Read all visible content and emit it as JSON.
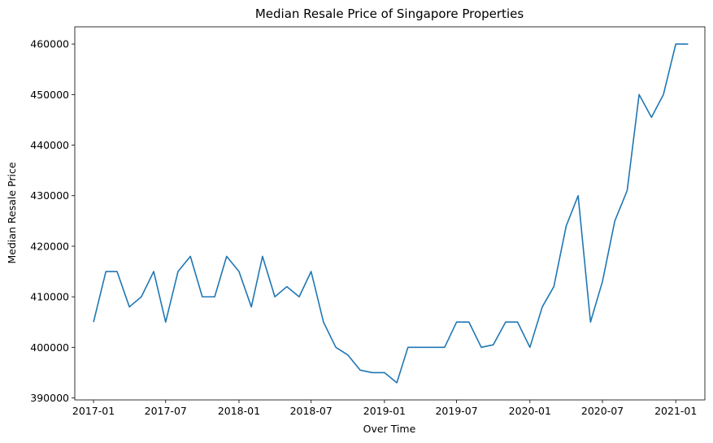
{
  "chart_data": {
    "type": "line",
    "title": "Median Resale Price of Singapore Properties",
    "xlabel": "Over Time",
    "ylabel": "Median Resale Price",
    "x_tick_labels": [
      "2017-01",
      "2017-07",
      "2018-01",
      "2018-07",
      "2019-01",
      "2019-07",
      "2020-01",
      "2020-07",
      "2021-01"
    ],
    "y_tick_labels": [
      "390000",
      "400000",
      "410000",
      "420000",
      "430000",
      "440000",
      "450000",
      "460000"
    ],
    "y_ticks": [
      390000,
      400000,
      410000,
      420000,
      430000,
      440000,
      450000,
      460000
    ],
    "xlim": [
      "2016-11-15",
      "2021-03-15"
    ],
    "ylim": [
      389600,
      463400
    ],
    "grid": false,
    "line_color": "#1f77b4",
    "series": [
      {
        "x": [
          "2017-01",
          "2017-02",
          "2017-03",
          "2017-04",
          "2017-05",
          "2017-06",
          "2017-07",
          "2017-08",
          "2017-09",
          "2017-10",
          "2017-11",
          "2017-12",
          "2018-01",
          "2018-02",
          "2018-03",
          "2018-04",
          "2018-05",
          "2018-06",
          "2018-07",
          "2018-08",
          "2018-09",
          "2018-10",
          "2018-11",
          "2018-12",
          "2019-01",
          "2019-02",
          "2019-03",
          "2019-04",
          "2019-05",
          "2019-06",
          "2019-07",
          "2019-08",
          "2019-09",
          "2019-10",
          "2019-11",
          "2019-12",
          "2020-01",
          "2020-02",
          "2020-03",
          "2020-04",
          "2020-05",
          "2020-06",
          "2020-07",
          "2020-08",
          "2020-09",
          "2020-10",
          "2020-11",
          "2020-12",
          "2021-01",
          "2021-02"
        ],
        "values": [
          405000,
          415000,
          415000,
          408000,
          410000,
          415000,
          405000,
          415000,
          418000,
          410000,
          410000,
          418000,
          415000,
          408000,
          418000,
          410000,
          412000,
          410000,
          415000,
          405000,
          400000,
          398500,
          395500,
          395000,
          395000,
          393000,
          400000,
          400000,
          400000,
          400000,
          405000,
          405000,
          400000,
          400500,
          405000,
          405000,
          400000,
          408000,
          412000,
          424000,
          430000,
          405000,
          413000,
          425000,
          431000,
          450000,
          445500,
          450000,
          460000,
          460000
        ]
      }
    ]
  }
}
